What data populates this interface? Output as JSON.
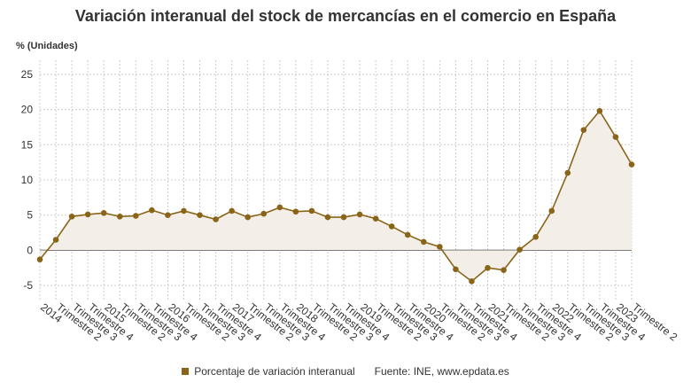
{
  "title": "Variación interanual del stock de mercancías en el comercio en España",
  "legend": {
    "series_label": "Porcentaje de variación interanual",
    "source": "Fuente: INE, www.epdata.es"
  },
  "colors": {
    "line": "#8a6418",
    "area": "#f3efe8",
    "grid": "#cccccc",
    "zero": "#333333"
  },
  "chart_data": {
    "type": "line",
    "ylabel": "% (Unidades)",
    "ylim": [
      -7,
      27
    ],
    "yticks": [
      -5,
      0,
      5,
      10,
      15,
      20,
      25
    ],
    "grid": true,
    "x": [
      "2014",
      "Trimestre 2",
      "Trimestre 3",
      "Trimestre 4",
      "2015",
      "Trimestre 2",
      "Trimestre 3",
      "Trimestre 4",
      "2016",
      "Trimestre 2",
      "Trimestre 3",
      "Trimestre 4",
      "2017",
      "Trimestre 2",
      "Trimestre 3",
      "Trimestre 4",
      "2018",
      "Trimestre 2",
      "Trimestre 3",
      "Trimestre 4",
      "2019",
      "Trimestre 2",
      "Trimestre 3",
      "Trimestre 4",
      "2020",
      "Trimestre 2",
      "Trimestre 3",
      "Trimestre 4",
      "2021",
      "Trimestre 2",
      "Trimestre 3",
      "Trimestre 4",
      "2022",
      "Trimestre 2",
      "Trimestre 3",
      "Trimestre 4",
      "2023",
      "Trimestre 2"
    ],
    "series": [
      {
        "name": "Porcentaje de variación interanual",
        "values": [
          -1.3,
          1.5,
          4.8,
          5.1,
          5.3,
          4.8,
          4.9,
          5.7,
          5.0,
          5.6,
          5.0,
          4.4,
          5.6,
          4.7,
          5.2,
          6.1,
          5.5,
          5.6,
          4.7,
          4.7,
          5.1,
          4.5,
          3.4,
          2.2,
          1.2,
          0.5,
          -2.7,
          -4.4,
          -2.5,
          -2.8,
          0.1,
          1.9,
          5.6,
          11.0,
          17.1,
          19.8,
          16.1,
          12.2
        ]
      }
    ]
  }
}
